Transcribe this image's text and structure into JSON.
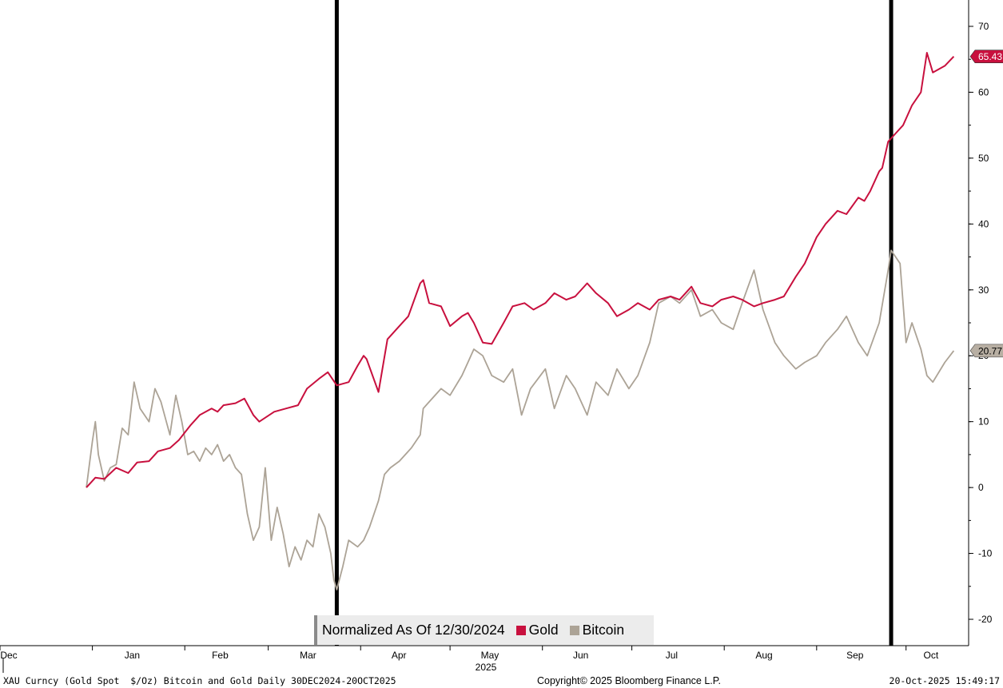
{
  "chart_data": {
    "type": "line",
    "legend": {
      "title": "Normalized As Of 12/30/2024",
      "placement": "bottom-center"
    },
    "y_axis": {
      "side": "right",
      "ticks": [
        70,
        60,
        50,
        40,
        30,
        20,
        10,
        0,
        -10,
        -20
      ],
      "range": [
        -24,
        74
      ]
    },
    "x_axis": {
      "range": [
        "2024-12-01",
        "2025-10-22"
      ],
      "month_labels": [
        {
          "label": "Dec",
          "date": "2024-12-01"
        },
        {
          "label": "Jan",
          "date": "2025-01-01"
        },
        {
          "label": "Feb",
          "date": "2025-02-01"
        },
        {
          "label": "Mar",
          "date": "2025-03-01"
        },
        {
          "label": "Apr",
          "date": "2025-04-01"
        },
        {
          "label": "May",
          "date": "2025-05-01"
        },
        {
          "label": "Jun",
          "date": "2025-06-01"
        },
        {
          "label": "Jul",
          "date": "2025-07-01"
        },
        {
          "label": "Aug",
          "date": "2025-08-01"
        },
        {
          "label": "Sep",
          "date": "2025-09-01"
        },
        {
          "label": "Oct",
          "date": "2025-10-01"
        }
      ],
      "year_label": "2025"
    },
    "vertical_markers": [
      "2025-03-24",
      "2025-09-26"
    ],
    "series": [
      {
        "name": "Gold",
        "color": "#c8103e",
        "last_value_label": "65.43",
        "points": [
          [
            "2024-12-30",
            0
          ],
          [
            "2025-01-02",
            1.5
          ],
          [
            "2025-01-05",
            1.3
          ],
          [
            "2025-01-09",
            3
          ],
          [
            "2025-01-13",
            2.2
          ],
          [
            "2025-01-16",
            3.8
          ],
          [
            "2025-01-20",
            4
          ],
          [
            "2025-01-23",
            5.5
          ],
          [
            "2025-01-27",
            6
          ],
          [
            "2025-01-30",
            7.2
          ],
          [
            "2025-02-03",
            9.5
          ],
          [
            "2025-02-06",
            11
          ],
          [
            "2025-02-10",
            12
          ],
          [
            "2025-02-12",
            11.5
          ],
          [
            "2025-02-14",
            12.5
          ],
          [
            "2025-02-18",
            12.8
          ],
          [
            "2025-02-21",
            13.5
          ],
          [
            "2025-02-24",
            11
          ],
          [
            "2025-02-26",
            10
          ],
          [
            "2025-03-03",
            11.5
          ],
          [
            "2025-03-07",
            12
          ],
          [
            "2025-03-11",
            12.5
          ],
          [
            "2025-03-14",
            15
          ],
          [
            "2025-03-18",
            16.5
          ],
          [
            "2025-03-21",
            17.5
          ],
          [
            "2025-03-24",
            15.5
          ],
          [
            "2025-03-28",
            16
          ],
          [
            "2025-03-31",
            18.5
          ],
          [
            "2025-04-02",
            20
          ],
          [
            "2025-04-03",
            19.5
          ],
          [
            "2025-04-07",
            14.5
          ],
          [
            "2025-04-10",
            22.5
          ],
          [
            "2025-04-14",
            24.5
          ],
          [
            "2025-04-17",
            26
          ],
          [
            "2025-04-21",
            31
          ],
          [
            "2025-04-22",
            31.5
          ],
          [
            "2025-04-24",
            28
          ],
          [
            "2025-04-28",
            27.5
          ],
          [
            "2025-05-01",
            24.5
          ],
          [
            "2025-05-05",
            26
          ],
          [
            "2025-05-07",
            26.5
          ],
          [
            "2025-05-09",
            25
          ],
          [
            "2025-05-12",
            22
          ],
          [
            "2025-05-15",
            21.8
          ],
          [
            "2025-05-19",
            25
          ],
          [
            "2025-05-22",
            27.5
          ],
          [
            "2025-05-26",
            28
          ],
          [
            "2025-05-29",
            27
          ],
          [
            "2025-06-02",
            28
          ],
          [
            "2025-06-05",
            29.5
          ],
          [
            "2025-06-09",
            28.5
          ],
          [
            "2025-06-12",
            29
          ],
          [
            "2025-06-16",
            31
          ],
          [
            "2025-06-19",
            29.5
          ],
          [
            "2025-06-23",
            28
          ],
          [
            "2025-06-26",
            26
          ],
          [
            "2025-06-30",
            27
          ],
          [
            "2025-07-03",
            28
          ],
          [
            "2025-07-07",
            27
          ],
          [
            "2025-07-10",
            28.5
          ],
          [
            "2025-07-14",
            29
          ],
          [
            "2025-07-17",
            28.5
          ],
          [
            "2025-07-21",
            30.5
          ],
          [
            "2025-07-24",
            28
          ],
          [
            "2025-07-28",
            27.5
          ],
          [
            "2025-07-31",
            28.5
          ],
          [
            "2025-08-04",
            29
          ],
          [
            "2025-08-07",
            28.5
          ],
          [
            "2025-08-11",
            27.5
          ],
          [
            "2025-08-14",
            28
          ],
          [
            "2025-08-18",
            28.5
          ],
          [
            "2025-08-21",
            29
          ],
          [
            "2025-08-25",
            32
          ],
          [
            "2025-08-28",
            34
          ],
          [
            "2025-09-01",
            38
          ],
          [
            "2025-09-04",
            40
          ],
          [
            "2025-09-08",
            42
          ],
          [
            "2025-09-11",
            41.5
          ],
          [
            "2025-09-15",
            44
          ],
          [
            "2025-09-17",
            43.5
          ],
          [
            "2025-09-19",
            45
          ],
          [
            "2025-09-22",
            48
          ],
          [
            "2025-09-23",
            48.5
          ],
          [
            "2025-09-25",
            52.5
          ],
          [
            "2025-09-26",
            53
          ],
          [
            "2025-09-30",
            55
          ],
          [
            "2025-10-03",
            58
          ],
          [
            "2025-10-06",
            60
          ],
          [
            "2025-10-08",
            66
          ],
          [
            "2025-10-10",
            63
          ],
          [
            "2025-10-14",
            64
          ],
          [
            "2025-10-17",
            65.43
          ]
        ]
      },
      {
        "name": "Bitcoin",
        "color": "#aca396",
        "last_value_label": "20.77",
        "points": [
          [
            "2024-12-30",
            0
          ],
          [
            "2025-01-01",
            7
          ],
          [
            "2025-01-02",
            10
          ],
          [
            "2025-01-03",
            5
          ],
          [
            "2025-01-05",
            1
          ],
          [
            "2025-01-07",
            3
          ],
          [
            "2025-01-09",
            3.5
          ],
          [
            "2025-01-11",
            9
          ],
          [
            "2025-01-13",
            8
          ],
          [
            "2025-01-15",
            16
          ],
          [
            "2025-01-17",
            12
          ],
          [
            "2025-01-20",
            10
          ],
          [
            "2025-01-22",
            15
          ],
          [
            "2025-01-24",
            13
          ],
          [
            "2025-01-27",
            8
          ],
          [
            "2025-01-29",
            14
          ],
          [
            "2025-01-31",
            10
          ],
          [
            "2025-02-02",
            5
          ],
          [
            "2025-02-04",
            5.5
          ],
          [
            "2025-02-06",
            4
          ],
          [
            "2025-02-08",
            6
          ],
          [
            "2025-02-10",
            5
          ],
          [
            "2025-02-12",
            6.5
          ],
          [
            "2025-02-14",
            4
          ],
          [
            "2025-02-16",
            5
          ],
          [
            "2025-02-18",
            3
          ],
          [
            "2025-02-20",
            2
          ],
          [
            "2025-02-22",
            -4
          ],
          [
            "2025-02-24",
            -8
          ],
          [
            "2025-02-26",
            -6
          ],
          [
            "2025-02-28",
            3
          ],
          [
            "2025-03-02",
            -8
          ],
          [
            "2025-03-04",
            -3
          ],
          [
            "2025-03-06",
            -7
          ],
          [
            "2025-03-08",
            -12
          ],
          [
            "2025-03-10",
            -9
          ],
          [
            "2025-03-12",
            -11
          ],
          [
            "2025-03-14",
            -8
          ],
          [
            "2025-03-16",
            -9
          ],
          [
            "2025-03-18",
            -4
          ],
          [
            "2025-03-20",
            -6
          ],
          [
            "2025-03-22",
            -10
          ],
          [
            "2025-03-23",
            -14
          ],
          [
            "2025-03-24",
            -15.5
          ],
          [
            "2025-03-26",
            -12
          ],
          [
            "2025-03-28",
            -8
          ],
          [
            "2025-03-31",
            -9
          ],
          [
            "2025-04-02",
            -8
          ],
          [
            "2025-04-04",
            -6
          ],
          [
            "2025-04-07",
            -2
          ],
          [
            "2025-04-09",
            2
          ],
          [
            "2025-04-11",
            3
          ],
          [
            "2025-04-14",
            4
          ],
          [
            "2025-04-16",
            5
          ],
          [
            "2025-04-18",
            6
          ],
          [
            "2025-04-21",
            8
          ],
          [
            "2025-04-22",
            12
          ],
          [
            "2025-04-24",
            13
          ],
          [
            "2025-04-28",
            15
          ],
          [
            "2025-05-01",
            14
          ],
          [
            "2025-05-05",
            17
          ],
          [
            "2025-05-07",
            19
          ],
          [
            "2025-05-09",
            21
          ],
          [
            "2025-05-12",
            20
          ],
          [
            "2025-05-15",
            17
          ],
          [
            "2025-05-19",
            16
          ],
          [
            "2025-05-22",
            18
          ],
          [
            "2025-05-25",
            11
          ],
          [
            "2025-05-28",
            15
          ],
          [
            "2025-06-02",
            18
          ],
          [
            "2025-06-05",
            12
          ],
          [
            "2025-06-09",
            17
          ],
          [
            "2025-06-12",
            15
          ],
          [
            "2025-06-16",
            11
          ],
          [
            "2025-06-19",
            16
          ],
          [
            "2025-06-23",
            14
          ],
          [
            "2025-06-26",
            18
          ],
          [
            "2025-06-30",
            15
          ],
          [
            "2025-07-03",
            17
          ],
          [
            "2025-07-07",
            22
          ],
          [
            "2025-07-10",
            28
          ],
          [
            "2025-07-14",
            29
          ],
          [
            "2025-07-17",
            28
          ],
          [
            "2025-07-21",
            30
          ],
          [
            "2025-07-24",
            26
          ],
          [
            "2025-07-28",
            27
          ],
          [
            "2025-07-31",
            25
          ],
          [
            "2025-08-04",
            24
          ],
          [
            "2025-08-07",
            28
          ],
          [
            "2025-08-11",
            33
          ],
          [
            "2025-08-14",
            27
          ],
          [
            "2025-08-18",
            22
          ],
          [
            "2025-08-21",
            20
          ],
          [
            "2025-08-25",
            18
          ],
          [
            "2025-08-28",
            19
          ],
          [
            "2025-09-01",
            20
          ],
          [
            "2025-09-04",
            22
          ],
          [
            "2025-09-08",
            24
          ],
          [
            "2025-09-11",
            26
          ],
          [
            "2025-09-15",
            22
          ],
          [
            "2025-09-18",
            20
          ],
          [
            "2025-09-22",
            25
          ],
          [
            "2025-09-25",
            33
          ],
          [
            "2025-09-26",
            36
          ],
          [
            "2025-09-29",
            34
          ],
          [
            "2025-10-01",
            22
          ],
          [
            "2025-10-03",
            25
          ],
          [
            "2025-10-06",
            21
          ],
          [
            "2025-10-08",
            17
          ],
          [
            "2025-10-10",
            16
          ],
          [
            "2025-10-14",
            19
          ],
          [
            "2025-10-17",
            20.77
          ]
        ]
      }
    ]
  },
  "footer": {
    "left": "XAU Curncy (Gold Spot  $/Oz) Bitcoin and Gold Daily 30DEC2024-20OCT2025",
    "center": "Copyright© 2025 Bloomberg Finance L.P.",
    "right": "20-Oct-2025 15:49:17"
  }
}
